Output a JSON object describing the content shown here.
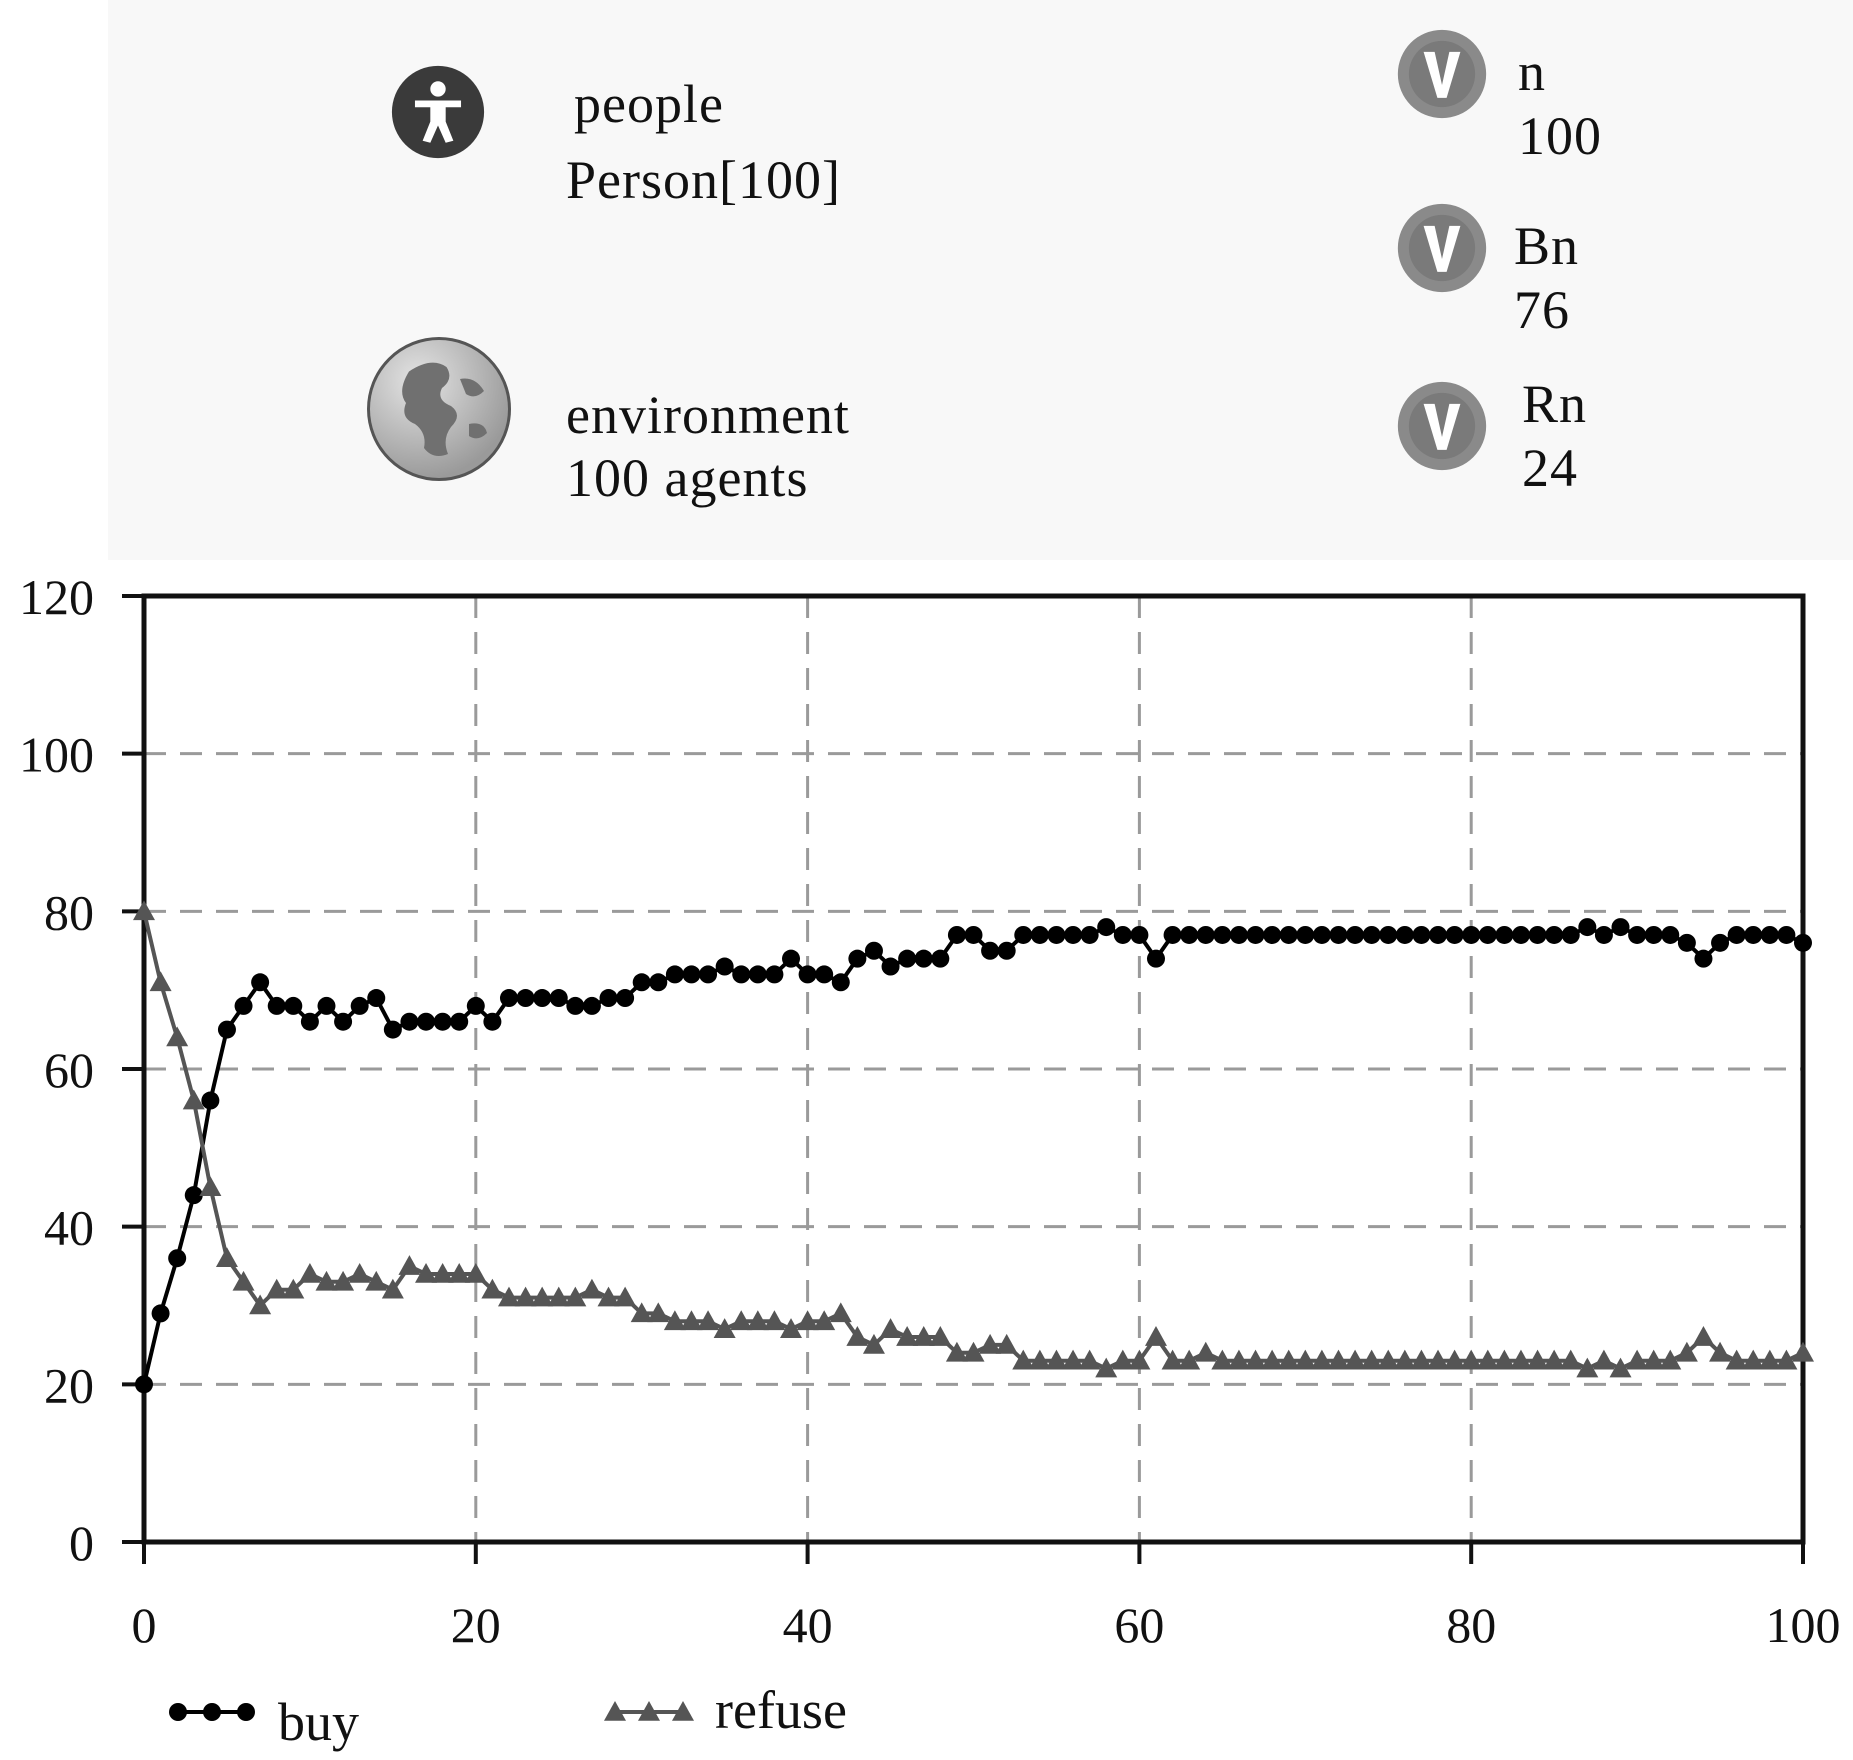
{
  "top": {
    "agents": {
      "icon": "person-icon",
      "name": "people",
      "type": "Person[100]"
    },
    "environment": {
      "icon": "globe-icon",
      "name": "environment",
      "count": "100 agents"
    },
    "variables": [
      {
        "icon": "variable-icon",
        "name": "n",
        "value": "100"
      },
      {
        "icon": "variable-icon",
        "name": "Bn",
        "value": "76"
      },
      {
        "icon": "variable-icon",
        "name": "Rn",
        "value": "24"
      }
    ]
  },
  "chart_data": {
    "type": "line",
    "xlim": [
      0,
      100
    ],
    "ylim": [
      0,
      120
    ],
    "xticks": [
      "0",
      "20",
      "40",
      "60",
      "80",
      "100"
    ],
    "yticks": [
      "0",
      "20",
      "40",
      "60",
      "80",
      "100",
      "120"
    ],
    "grid": true,
    "legend_position": "bottom",
    "x": [
      0,
      1,
      2,
      3,
      4,
      5,
      6,
      7,
      8,
      9,
      10,
      11,
      12,
      13,
      14,
      15,
      16,
      17,
      18,
      19,
      20,
      21,
      22,
      23,
      24,
      25,
      26,
      27,
      28,
      29,
      30,
      31,
      32,
      33,
      34,
      35,
      36,
      37,
      38,
      39,
      40,
      41,
      42,
      43,
      44,
      45,
      46,
      47,
      48,
      49,
      50,
      51,
      52,
      53,
      54,
      55,
      56,
      57,
      58,
      59,
      60,
      61,
      62,
      63,
      64,
      65,
      66,
      67,
      68,
      69,
      70,
      71,
      72,
      73,
      74,
      75,
      76,
      77,
      78,
      79,
      80,
      81,
      82,
      83,
      84,
      85,
      86,
      87,
      88,
      89,
      90,
      91,
      92,
      93,
      94,
      95,
      96,
      97,
      98,
      99,
      100
    ],
    "series": [
      {
        "name": "buy",
        "color": "#000000",
        "marker": "circle",
        "values": [
          20,
          29,
          36,
          44,
          56,
          65,
          68,
          71,
          68,
          68,
          66,
          68,
          66,
          68,
          69,
          65,
          66,
          66,
          66,
          66,
          68,
          66,
          69,
          69,
          69,
          69,
          68,
          68,
          69,
          69,
          71,
          71,
          72,
          72,
          72,
          73,
          72,
          72,
          72,
          74,
          72,
          72,
          71,
          74,
          75,
          73,
          74,
          74,
          74,
          77,
          77,
          75,
          75,
          77,
          77,
          77,
          77,
          77,
          78,
          77,
          77,
          74,
          77,
          77,
          77,
          77,
          77,
          77,
          77,
          77,
          77,
          77,
          77,
          77,
          77,
          77,
          77,
          77,
          77,
          77,
          77,
          77,
          77,
          77,
          77,
          77,
          77,
          78,
          77,
          78,
          77,
          77,
          77,
          76,
          74,
          76,
          77,
          77,
          77,
          77,
          76
        ]
      },
      {
        "name": "refuse",
        "color": "#555555",
        "marker": "triangle",
        "values": [
          80,
          71,
          64,
          56,
          45,
          36,
          33,
          30,
          32,
          32,
          34,
          33,
          33,
          34,
          33,
          32,
          35,
          34,
          34,
          34,
          34,
          32,
          31,
          31,
          31,
          31,
          31,
          32,
          31,
          31,
          29,
          29,
          28,
          28,
          28,
          27,
          28,
          28,
          28,
          27,
          28,
          28,
          29,
          26,
          25,
          27,
          26,
          26,
          26,
          24,
          24,
          25,
          25,
          23,
          23,
          23,
          23,
          23,
          22,
          23,
          23,
          26,
          23,
          23,
          24,
          23,
          23,
          23,
          23,
          23,
          23,
          23,
          23,
          23,
          23,
          23,
          23,
          23,
          23,
          23,
          23,
          23,
          23,
          23,
          23,
          23,
          23,
          22,
          23,
          22,
          23,
          23,
          23,
          24,
          26,
          24,
          23,
          23,
          23,
          23,
          24
        ]
      }
    ]
  }
}
